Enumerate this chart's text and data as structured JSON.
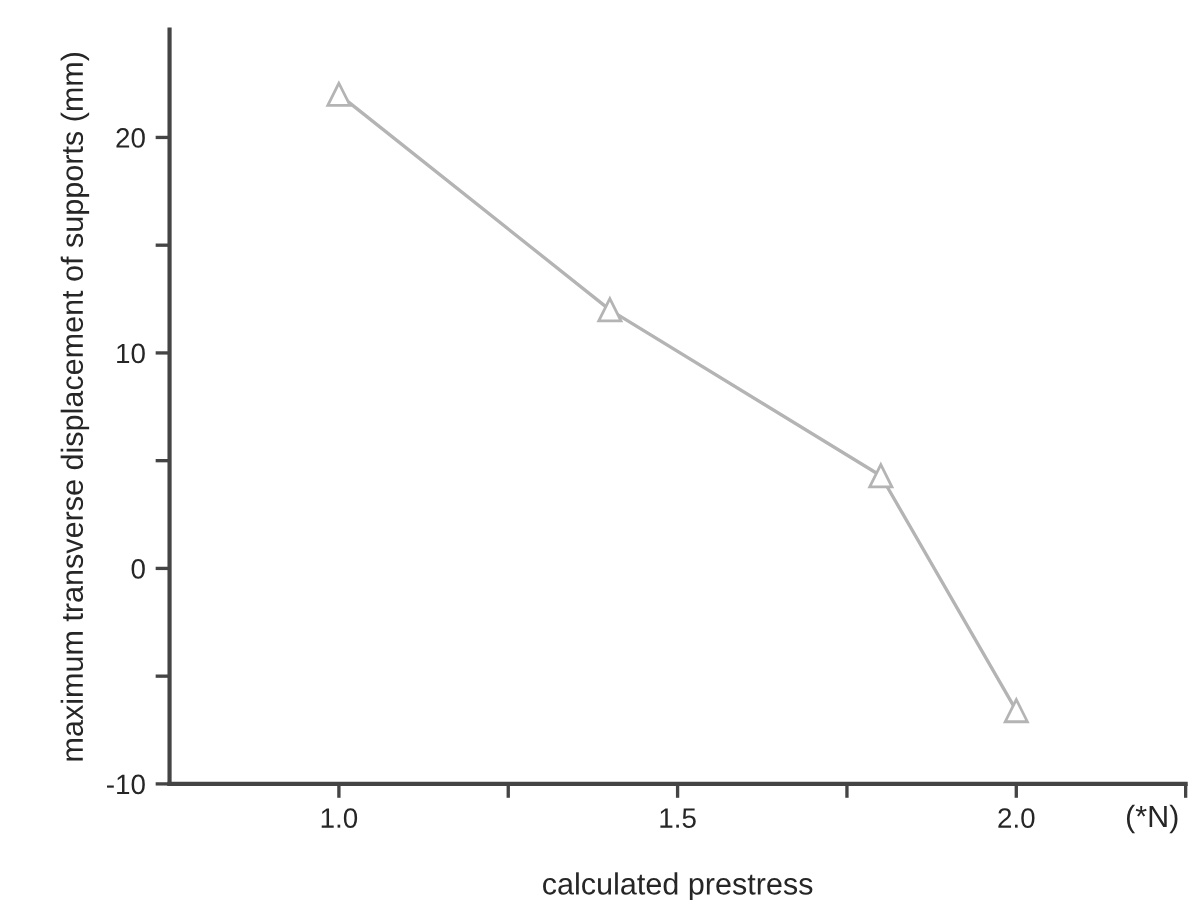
{
  "chart_data": {
    "type": "line",
    "xlabel": "calculated prestress",
    "ylabel": "maximum transverse displacement of supports (mm)",
    "x": [
      1.0,
      1.4,
      1.8,
      2.0
    ],
    "series": [
      {
        "color": "#b4b4b4",
        "values": [
          22,
          12,
          4.3,
          -6.6
        ]
      }
    ],
    "marker": "triangle",
    "line_style": "solid",
    "grid": false,
    "xlim": [
      0.75,
      2.25
    ],
    "xticks": [
      {
        "value": 1.0,
        "label": "1.0"
      },
      {
        "value": 1.25,
        "label": null
      },
      {
        "value": 1.5,
        "label": "1.5"
      },
      {
        "value": 1.75,
        "label": null
      },
      {
        "value": 2.0,
        "label": "2.0"
      },
      {
        "value": 2.25,
        "label": null
      }
    ],
    "ylim": [
      -10,
      25
    ],
    "yticks": [
      -10,
      {
        "value": -5,
        "label": null
      },
      0,
      {
        "value": 5,
        "label": null
      },
      10,
      {
        "value": 15,
        "label": null
      },
      20
    ],
    "annotations": [
      "(*N)"
    ]
  }
}
